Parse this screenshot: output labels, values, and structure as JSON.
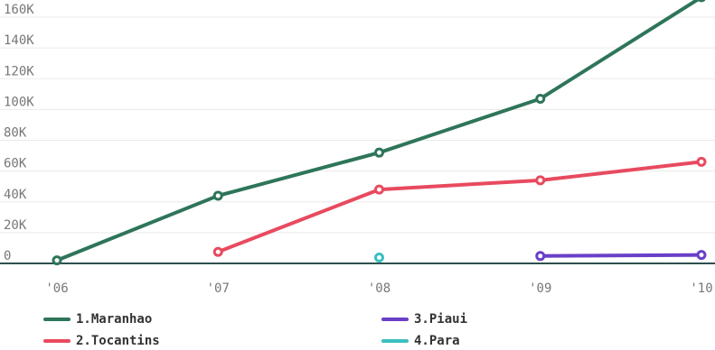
{
  "chart_data": {
    "type": "line",
    "x": [
      "'06",
      "'07",
      "'08",
      "'09",
      "'10"
    ],
    "ylim": [
      0,
      170000
    ],
    "yticks": [
      0,
      20000,
      40000,
      60000,
      80000,
      100000,
      120000,
      140000,
      160000
    ],
    "ytick_labels": [
      "0",
      "20K",
      "40K",
      "60K",
      "80K",
      "100K",
      "120K",
      "140K",
      "160K"
    ],
    "grid": true,
    "legend_position": "bottom",
    "series": [
      {
        "name": "1.Maranhao",
        "color": "#2e7559",
        "values": [
          2000,
          44000,
          72000,
          107000,
          173000
        ]
      },
      {
        "name": "2.Tocantins",
        "color": "#e84a5f",
        "values": [
          null,
          7500,
          48000,
          54000,
          66000
        ]
      },
      {
        "name": "3.Piaui",
        "color": "#6a3fc8",
        "values": [
          null,
          null,
          null,
          4800,
          5500
        ]
      },
      {
        "name": "4.Para",
        "color": "#3bbfbf",
        "values": [
          null,
          null,
          3800,
          null,
          null
        ]
      }
    ]
  }
}
